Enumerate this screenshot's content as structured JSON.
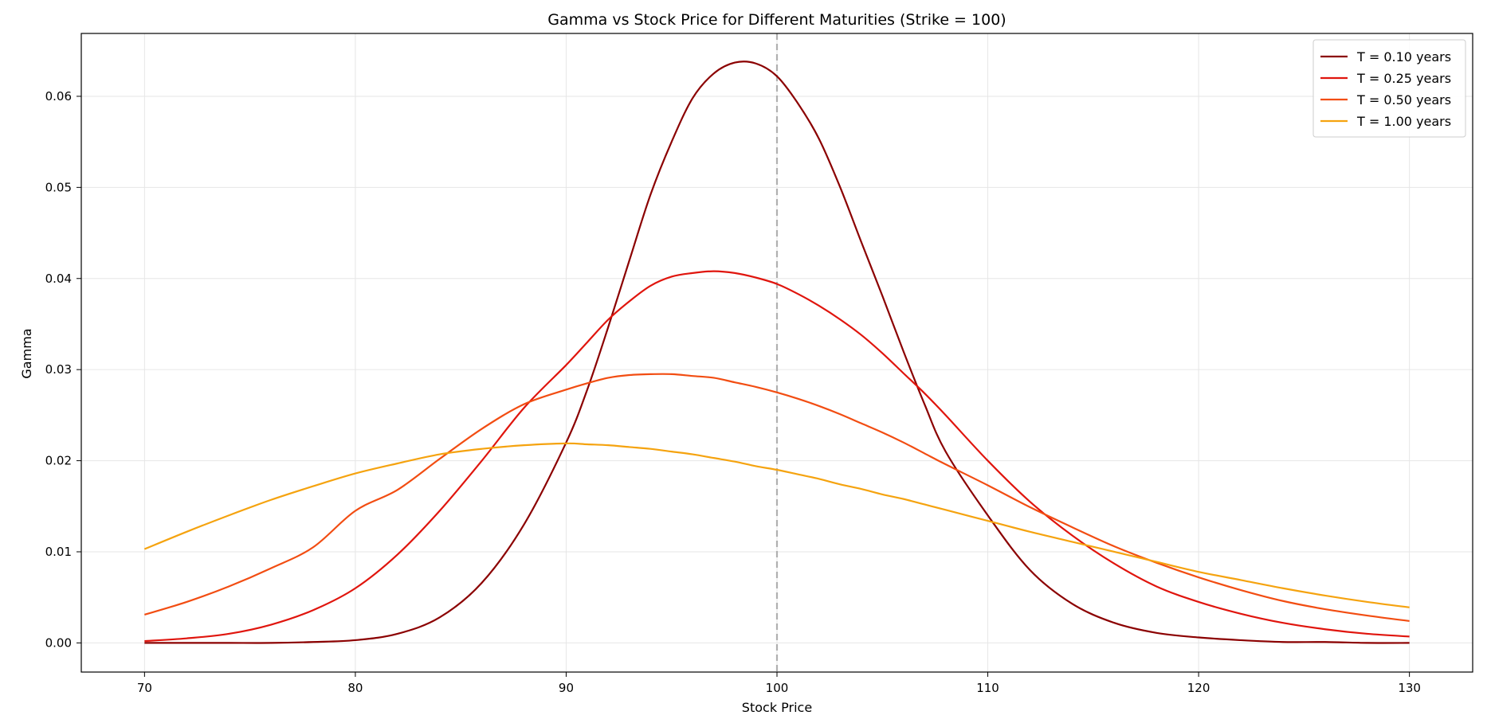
{
  "chart_data": {
    "type": "line",
    "title": "Gamma vs Stock Price for Different Maturities (Strike = 100)",
    "xlabel": "Stock Price",
    "ylabel": "Gamma",
    "xlim": [
      67,
      133
    ],
    "ylim": [
      -0.0032,
      0.0669
    ],
    "xticks": [
      70,
      80,
      90,
      100,
      110,
      120,
      130
    ],
    "yticks": [
      0.0,
      0.01,
      0.02,
      0.03,
      0.04,
      0.05,
      0.06
    ],
    "ytick_labels": [
      "0.00",
      "0.01",
      "0.02",
      "0.03",
      "0.04",
      "0.05",
      "0.06"
    ],
    "grid": true,
    "legend_position": "top-right",
    "reference_line": {
      "x": 100,
      "color": "#b0b0b0",
      "style": "dashed"
    },
    "x": [
      70,
      72,
      74,
      76,
      78,
      80,
      82,
      84,
      86,
      88,
      90,
      91,
      92,
      93,
      94,
      95,
      96,
      97,
      98,
      99,
      100,
      101,
      102,
      103,
      104,
      105,
      106,
      107,
      108,
      110,
      112,
      114,
      116,
      118,
      120,
      122,
      124,
      126,
      128,
      130
    ],
    "series": [
      {
        "name": "T = 0.10 years",
        "color": "#8b0000",
        "values": [
          0.0,
          0.0,
          0.0,
          0.0,
          0.0001,
          0.0003,
          0.001,
          0.0028,
          0.0066,
          0.013,
          0.022,
          0.0278,
          0.0347,
          0.042,
          0.0492,
          0.055,
          0.0598,
          0.0625,
          0.0637,
          0.0636,
          0.0622,
          0.0592,
          0.0553,
          0.05,
          0.044,
          0.0381,
          0.032,
          0.0262,
          0.021,
          0.014,
          0.008,
          0.0043,
          0.0022,
          0.0011,
          0.0006,
          0.0003,
          0.0001,
          0.0001,
          0.0,
          0.0
        ]
      },
      {
        "name": "T = 0.25 years",
        "color": "#e0150d",
        "values": [
          0.0002,
          0.0005,
          0.001,
          0.002,
          0.0036,
          0.006,
          0.0097,
          0.0145,
          0.02,
          0.0258,
          0.0305,
          0.033,
          0.0355,
          0.0375,
          0.0392,
          0.0402,
          0.0406,
          0.0408,
          0.0406,
          0.0401,
          0.0394,
          0.0383,
          0.037,
          0.0355,
          0.0338,
          0.0318,
          0.0296,
          0.0274,
          0.025,
          0.02,
          0.0155,
          0.0118,
          0.0087,
          0.0062,
          0.0045,
          0.0032,
          0.0022,
          0.0015,
          0.001,
          0.0007
        ]
      },
      {
        "name": "T = 0.50 years",
        "color": "#f24d12",
        "values": [
          0.0031,
          0.0045,
          0.0062,
          0.0082,
          0.0105,
          0.0145,
          0.0168,
          0.0202,
          0.0235,
          0.0262,
          0.0278,
          0.0285,
          0.0291,
          0.0294,
          0.0295,
          0.0295,
          0.0293,
          0.0291,
          0.0286,
          0.0281,
          0.0275,
          0.0268,
          0.026,
          0.0251,
          0.0241,
          0.0231,
          0.022,
          0.0208,
          0.0196,
          0.0173,
          0.0149,
          0.0127,
          0.0106,
          0.0088,
          0.0072,
          0.0058,
          0.0046,
          0.0037,
          0.003,
          0.0024
        ]
      },
      {
        "name": "T = 1.00 years",
        "color": "#f5a30f",
        "values": [
          0.0103,
          0.0122,
          0.014,
          0.0157,
          0.0172,
          0.0186,
          0.0197,
          0.0207,
          0.0213,
          0.0217,
          0.0219,
          0.0218,
          0.0217,
          0.0215,
          0.0213,
          0.021,
          0.0207,
          0.0203,
          0.0199,
          0.0194,
          0.019,
          0.0185,
          0.018,
          0.0174,
          0.0169,
          0.0163,
          0.0158,
          0.0152,
          0.0146,
          0.0134,
          0.0122,
          0.0111,
          0.01,
          0.0089,
          0.0078,
          0.0069,
          0.006,
          0.0052,
          0.0045,
          0.0039
        ]
      }
    ]
  }
}
